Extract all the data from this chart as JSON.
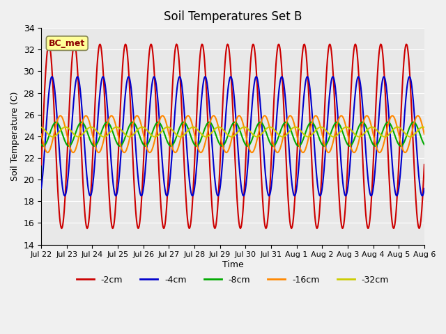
{
  "title": "Soil Temperatures Set B",
  "xlabel": "Time",
  "ylabel": "Soil Temperature (C)",
  "ylim": [
    14,
    34
  ],
  "xlim": [
    0,
    15
  ],
  "annotation": "BC_met",
  "fig_facecolor": "#f0f0f0",
  "ax_facecolor": "#e8e8e8",
  "xtick_labels": [
    "Jul 22",
    "Jul 23",
    "Jul 24",
    "Jul 25",
    "Jul 26",
    "Jul 27",
    "Jul 28",
    "Jul 29",
    "Jul 30",
    "Jul 31",
    "Aug 1",
    "Aug 2",
    "Aug 3",
    "Aug 4",
    "Aug 5",
    "Aug 6"
  ],
  "ytick_labels": [
    14,
    16,
    18,
    20,
    22,
    24,
    26,
    28,
    30,
    32,
    34
  ],
  "legend_order": [
    "-2cm",
    "-4cm",
    "-8cm",
    "-16cm",
    "-32cm"
  ],
  "line_width": 1.5,
  "series_params": {
    "-2cm": {
      "color": "#cc0000",
      "amplitude": 8.5,
      "mean": 24.0,
      "phase_lag": 0.0,
      "name": "-2cm"
    },
    "-4cm": {
      "color": "#0000cc",
      "amplitude": 5.5,
      "mean": 24.0,
      "phase_lag": 0.12,
      "name": "-4cm"
    },
    "-8cm": {
      "color": "#00aa00",
      "amplitude": 1.1,
      "mean": 24.2,
      "phase_lag": 0.28,
      "name": "-8cm"
    },
    "-16cm": {
      "color": "#ff8800",
      "amplitude": 1.7,
      "mean": 24.2,
      "phase_lag": 0.45,
      "name": "-16cm"
    },
    "-32cm": {
      "color": "#cccc00",
      "amplitude": 0.45,
      "mean": 24.4,
      "phase_lag": 0.65,
      "name": "-32cm"
    }
  }
}
